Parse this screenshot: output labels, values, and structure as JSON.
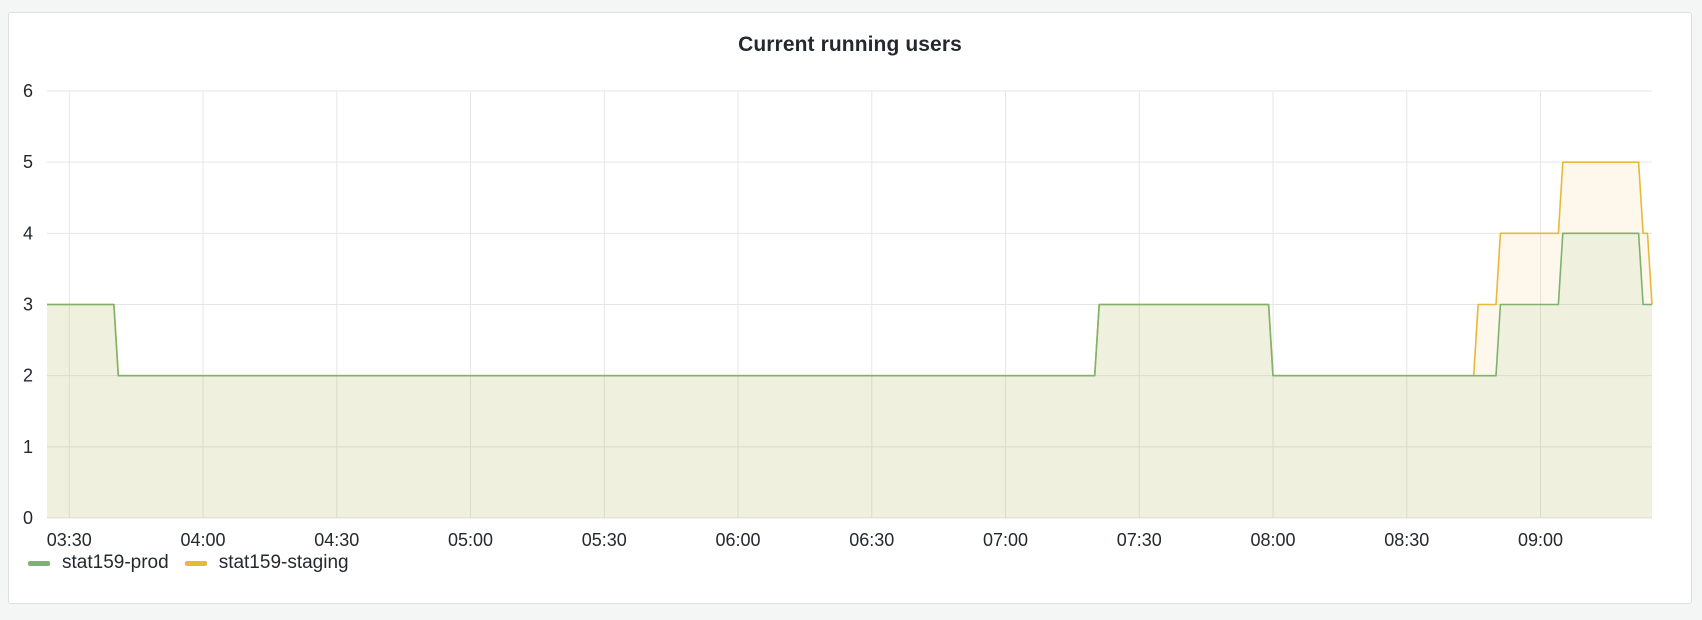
{
  "panel": {
    "title": "Current running users"
  },
  "colors": {
    "prod": "#7eb26d",
    "staging": "#eab839",
    "grid": "#e4e6e9",
    "text": "#24292e"
  },
  "chart_data": {
    "type": "area",
    "title": "Current running users",
    "xlabel": "",
    "ylabel": "",
    "x_range": [
      "03:25",
      "09:25"
    ],
    "ylim": [
      0,
      6
    ],
    "y_ticks": [
      "0",
      "1",
      "2",
      "3",
      "4",
      "5",
      "6"
    ],
    "x_ticks": [
      "03:30",
      "04:00",
      "04:30",
      "05:00",
      "05:30",
      "06:00",
      "06:30",
      "07:00",
      "07:30",
      "08:00",
      "08:30",
      "09:00"
    ],
    "grid": true,
    "legend_position": "bottom-left",
    "series": [
      {
        "name": "stat159-prod",
        "color": "#7eb26d",
        "points": [
          [
            "03:25",
            3
          ],
          [
            "03:40",
            3
          ],
          [
            "03:41",
            2
          ],
          [
            "07:20",
            2
          ],
          [
            "07:21",
            3
          ],
          [
            "07:59",
            3
          ],
          [
            "08:00",
            2
          ],
          [
            "08:50",
            2
          ],
          [
            "08:51",
            3
          ],
          [
            "09:04",
            3
          ],
          [
            "09:05",
            4
          ],
          [
            "09:22",
            4
          ],
          [
            "09:23",
            3
          ],
          [
            "09:25",
            3
          ]
        ]
      },
      {
        "name": "stat159-staging",
        "color": "#eab839",
        "points": [
          [
            "03:25",
            3
          ],
          [
            "03:40",
            3
          ],
          [
            "03:41",
            2
          ],
          [
            "07:20",
            2
          ],
          [
            "07:21",
            3
          ],
          [
            "07:59",
            3
          ],
          [
            "08:00",
            2
          ],
          [
            "08:45",
            2
          ],
          [
            "08:46",
            3
          ],
          [
            "08:50",
            3
          ],
          [
            "08:51",
            4
          ],
          [
            "09:04",
            4
          ],
          [
            "09:05",
            5
          ],
          [
            "09:22",
            5
          ],
          [
            "09:23",
            4
          ],
          [
            "09:24",
            4
          ],
          [
            "09:25",
            3
          ]
        ]
      }
    ]
  }
}
